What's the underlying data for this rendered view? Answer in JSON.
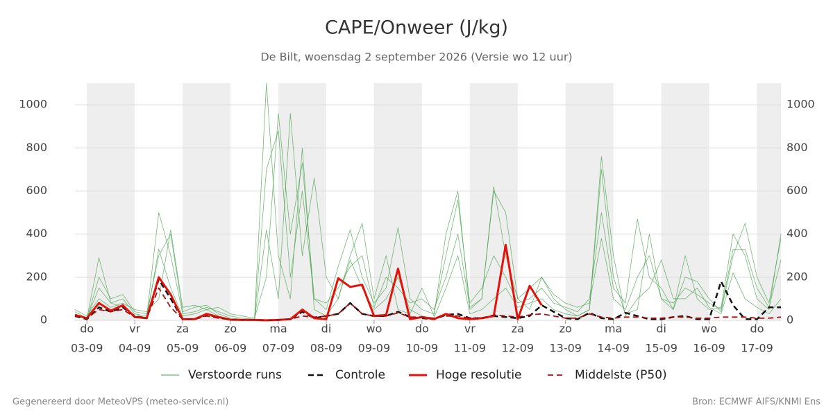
{
  "chart_data": {
    "type": "line",
    "title": "CAPE/Onweer (J/kg)",
    "subtitle": "De Bilt, woensdag  2 september 2026 (Versie wo 12 uur)",
    "footer_left": "Gegenereerd door MeteoVPS (meteo-service.nl)",
    "footer_right": "Bron: ECMWF AIFS/KNMI Ens",
    "x": [
      -0.25,
      0,
      0.25,
      0.5,
      0.75,
      1,
      1.25,
      1.5,
      1.75,
      2,
      2.25,
      2.5,
      2.75,
      3,
      3.25,
      3.5,
      3.75,
      4,
      4.25,
      4.5,
      4.75,
      5,
      5.25,
      5.5,
      5.75,
      6,
      6.25,
      6.5,
      6.75,
      7,
      7.25,
      7.5,
      7.75,
      8,
      8.25,
      8.5,
      8.75,
      9,
      9.25,
      9.5,
      9.75,
      10,
      10.25,
      10.5,
      10.75,
      11,
      11.25,
      11.5,
      11.75,
      12,
      12.25,
      12.5,
      12.75,
      13,
      13.25,
      13.5,
      13.75,
      14,
      14.25,
      14.5
    ],
    "xlim": [
      -0.25,
      14.5
    ],
    "xticks": [
      {
        "value": 0,
        "label": "do"
      },
      {
        "value": 1,
        "label": "vr"
      },
      {
        "value": 2,
        "label": "za"
      },
      {
        "value": 3,
        "label": "zo"
      },
      {
        "value": 4,
        "label": "ma"
      },
      {
        "value": 5,
        "label": "di"
      },
      {
        "value": 6,
        "label": "wo"
      },
      {
        "value": 7,
        "label": "do"
      },
      {
        "value": 8,
        "label": "vr"
      },
      {
        "value": 9,
        "label": "za"
      },
      {
        "value": 10,
        "label": "zo"
      },
      {
        "value": 11,
        "label": "ma"
      },
      {
        "value": 12,
        "label": "di"
      },
      {
        "value": 13,
        "label": "wo"
      },
      {
        "value": 14,
        "label": "do"
      }
    ],
    "xtick_dates": [
      "03-09",
      "04-09",
      "05-09",
      "06-09",
      "07-09",
      "08-09",
      "09-09",
      "10-09",
      "11-09",
      "12-09",
      "13-09",
      "14-09",
      "15-09",
      "16-09",
      "17-09"
    ],
    "ylim": [
      0,
      1100
    ],
    "yticks": [
      0,
      200,
      400,
      600,
      800,
      1000
    ],
    "grid": true,
    "shading": "alternate-days",
    "legend": "bottom",
    "series": [
      {
        "name": "Verstoorde runs",
        "color": "#43a047",
        "linestyle": "solid",
        "linewidth": 0.8,
        "values": [
          40,
          10,
          290,
          80,
          100,
          30,
          20,
          500,
          300,
          30,
          40,
          60,
          40,
          20,
          10,
          5,
          1100,
          300,
          100,
          800,
          50,
          20,
          100,
          300,
          450,
          100,
          300,
          50,
          30,
          150,
          20,
          400,
          600,
          50,
          100,
          600,
          500,
          100,
          50,
          200,
          100,
          50,
          20,
          50,
          700,
          200,
          30,
          50,
          400,
          100,
          50,
          300,
          100,
          50,
          60,
          400,
          300,
          100,
          50,
          400
        ]
      },
      {
        "name": "Verstoorde runs",
        "color": "#43a047",
        "linestyle": "solid",
        "linewidth": 0.8,
        "values": [
          30,
          5,
          200,
          100,
          120,
          40,
          30,
          300,
          400,
          40,
          60,
          70,
          30,
          10,
          5,
          2,
          700,
          880,
          200,
          600,
          100,
          50,
          250,
          420,
          200,
          80,
          150,
          430,
          100,
          50,
          30,
          300,
          560,
          80,
          150,
          300,
          200,
          80,
          100,
          150,
          80,
          60,
          40,
          100,
          500,
          150,
          80,
          470,
          200,
          150,
          50,
          200,
          180,
          100,
          40,
          300,
          450,
          200,
          80,
          380
        ]
      },
      {
        "name": "Verstoorde runs",
        "color": "#43a047",
        "linestyle": "solid",
        "linewidth": 0.8,
        "values": [
          20,
          10,
          150,
          80,
          60,
          20,
          10,
          330,
          150,
          20,
          30,
          50,
          20,
          5,
          3,
          1,
          420,
          100,
          960,
          300,
          660,
          200,
          100,
          280,
          150,
          50,
          100,
          200,
          50,
          20,
          10,
          150,
          300,
          30,
          50,
          100,
          150,
          60,
          80,
          100,
          50,
          30,
          20,
          50,
          760,
          300,
          20,
          100,
          150,
          280,
          100,
          100,
          150,
          60,
          30,
          220,
          100,
          60,
          30,
          100
        ]
      },
      {
        "name": "Verstoorde runs",
        "color": "#43a047",
        "linestyle": "solid",
        "linewidth": 0.8,
        "values": [
          50,
          20,
          100,
          60,
          80,
          50,
          40,
          100,
          420,
          60,
          70,
          50,
          60,
          30,
          20,
          10,
          200,
          960,
          400,
          730,
          100,
          80,
          150,
          250,
          300,
          60,
          200,
          150,
          80,
          100,
          50,
          200,
          400,
          60,
          100,
          620,
          300,
          100,
          150,
          200,
          120,
          80,
          60,
          80,
          380,
          100,
          50,
          200,
          300,
          100,
          80,
          150,
          120,
          80,
          50,
          330,
          330,
          150,
          60,
          280
        ]
      },
      {
        "name": "Controle",
        "color": "#111111",
        "linestyle": "dashed",
        "linewidth": 2.5,
        "values": [
          20,
          5,
          60,
          40,
          60,
          20,
          10,
          190,
          100,
          5,
          5,
          25,
          15,
          3,
          2,
          2,
          1,
          2,
          5,
          40,
          10,
          20,
          30,
          80,
          30,
          20,
          20,
          40,
          15,
          10,
          5,
          25,
          30,
          10,
          10,
          20,
          15,
          10,
          20,
          70,
          40,
          10,
          5,
          35,
          10,
          5,
          35,
          20,
          5,
          5,
          15,
          20,
          5,
          5,
          180,
          70,
          5,
          5,
          60,
          60
        ]
      },
      {
        "name": "Hoge resolutie",
        "color": "#e3120b",
        "linestyle": "solid",
        "linewidth": 3,
        "values": [
          25,
          10,
          80,
          45,
          70,
          15,
          10,
          200,
          120,
          5,
          5,
          30,
          15,
          3,
          2,
          2,
          0,
          2,
          5,
          50,
          10,
          5,
          195,
          155,
          165,
          20,
          25,
          240,
          5,
          15,
          5,
          30,
          10,
          5,
          10,
          20,
          350,
          5,
          160,
          70,
          null,
          null,
          null,
          null,
          null,
          null,
          null,
          null,
          null,
          null,
          null,
          null,
          null,
          null,
          null,
          null,
          null,
          null,
          null,
          null
        ]
      },
      {
        "name": "Middelste (P50)",
        "color": "#a50f0f",
        "linestyle": "dashed",
        "linewidth": 1.8,
        "values": [
          20,
          10,
          50,
          40,
          50,
          15,
          10,
          150,
          60,
          5,
          5,
          20,
          10,
          3,
          2,
          2,
          1,
          2,
          5,
          20,
          15,
          20,
          30,
          80,
          30,
          20,
          20,
          35,
          15,
          15,
          10,
          20,
          20,
          10,
          10,
          25,
          20,
          15,
          25,
          30,
          20,
          10,
          10,
          30,
          15,
          10,
          15,
          15,
          10,
          10,
          15,
          15,
          10,
          10,
          15,
          15,
          15,
          10,
          10,
          15
        ]
      }
    ]
  }
}
